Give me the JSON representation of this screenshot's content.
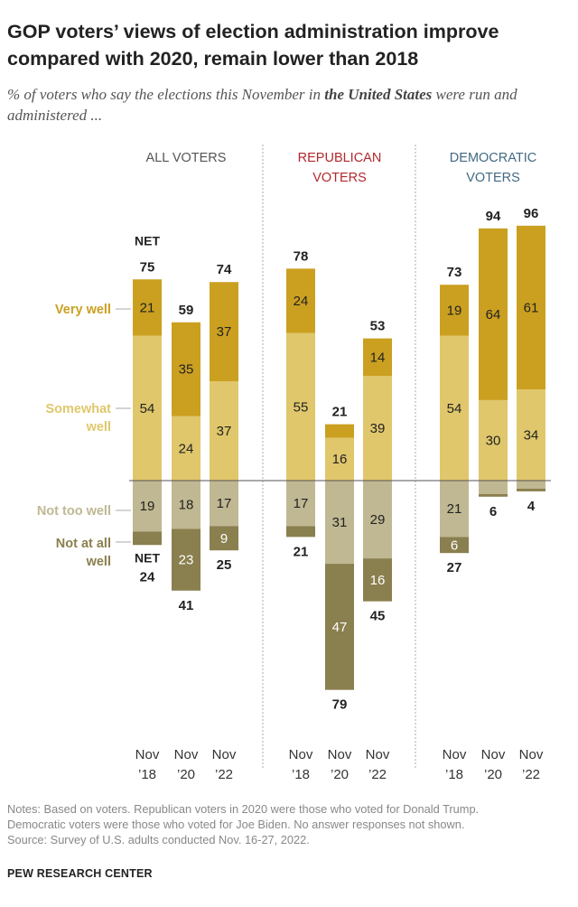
{
  "title": "GOP voters’ views of election administration improve compared with 2020, remain lower than 2018",
  "subtitle_pre": "% of voters who say the elections this November in ",
  "subtitle_bold": "the United States",
  "subtitle_post": " were run and administered ...",
  "notes": [
    "Notes: Based on voters. Republican voters in 2020 were those who voted for Donald Trump.",
    "Democratic voters were those who voted for Joe Biden. No answer responses not shown.",
    "Source: Survey of U.S. adults conducted Nov. 16-27, 2022."
  ],
  "brand": "PEW RESEARCH CENTER",
  "chart_data": {
    "type": "bar",
    "stacked": "diverging",
    "net_label": "NET",
    "legend": [
      {
        "name": "Very well",
        "color": "#CBA020"
      },
      {
        "name": "Somewhat well",
        "color": "#E0C76C"
      },
      {
        "name": "Not too well",
        "color": "#BFB892"
      },
      {
        "name": "Not at all well",
        "color": "#8A7F4E"
      }
    ],
    "groups": [
      {
        "name": "ALL VOTERS",
        "color": "#555555",
        "bars": [
          {
            "label": [
              "Nov",
              "’18"
            ],
            "very": 21,
            "somewhat": 54,
            "not_too": 19,
            "not_at_all": 5,
            "net_pos": 75,
            "net_neg": 24
          },
          {
            "label": [
              "Nov",
              "’20"
            ],
            "very": 35,
            "somewhat": 24,
            "not_too": 18,
            "not_at_all": 23,
            "net_pos": 59,
            "net_neg": 41
          },
          {
            "label": [
              "Nov",
              "’22"
            ],
            "very": 37,
            "somewhat": 37,
            "not_too": 17,
            "not_at_all": 9,
            "net_pos": 74,
            "net_neg": 25
          }
        ]
      },
      {
        "name": "REPUBLICAN VOTERS",
        "color": "#B3282D",
        "bars": [
          {
            "label": [
              "Nov",
              "’18"
            ],
            "very": 24,
            "somewhat": 55,
            "not_too": 17,
            "not_at_all": 4,
            "net_pos": 78,
            "net_neg": 21
          },
          {
            "label": [
              "Nov",
              "’20"
            ],
            "very": 5,
            "somewhat": 16,
            "not_too": 31,
            "not_at_all": 47,
            "net_pos": 21,
            "net_neg": 79
          },
          {
            "label": [
              "Nov",
              "’22"
            ],
            "very": 14,
            "somewhat": 39,
            "not_too": 29,
            "not_at_all": 16,
            "net_pos": 53,
            "net_neg": 45
          }
        ]
      },
      {
        "name": "DEMOCRATIC VOTERS",
        "color": "#436983",
        "bars": [
          {
            "label": [
              "Nov",
              "’18"
            ],
            "very": 19,
            "somewhat": 54,
            "not_too": 21,
            "not_at_all": 6,
            "net_pos": 73,
            "net_neg": 27
          },
          {
            "label": [
              "Nov",
              "’20"
            ],
            "very": 64,
            "somewhat": 30,
            "not_too": 5,
            "not_at_all": 1,
            "net_pos": 94,
            "net_neg": 6
          },
          {
            "label": [
              "Nov",
              "’22"
            ],
            "very": 61,
            "somewhat": 34,
            "not_too": 3,
            "not_at_all": 1,
            "net_pos": 96,
            "net_neg": 4
          }
        ]
      }
    ]
  }
}
